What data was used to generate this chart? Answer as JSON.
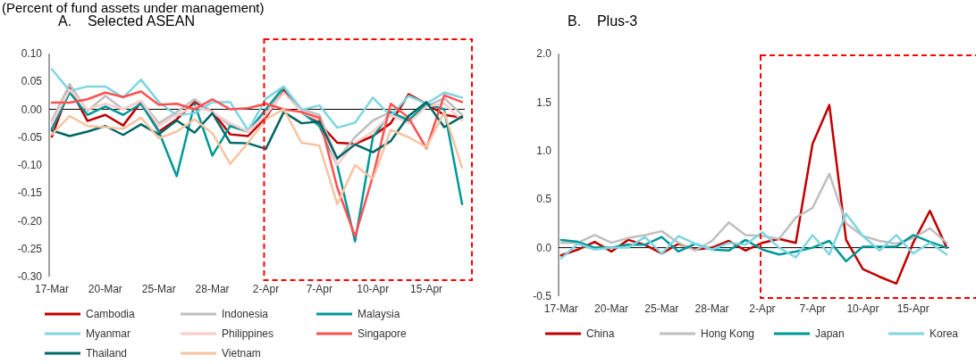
{
  "chart_data": [
    {
      "type": "line",
      "title": "A.    Selected ASEAN",
      "annotations": [
        "(Percent of fund assets under management)"
      ],
      "categories": [
        "17-Mar",
        null,
        null,
        "20-Mar",
        null,
        null,
        "25-Mar",
        null,
        null,
        "28-Mar",
        null,
        null,
        "2-Apr",
        null,
        null,
        "7-Apr",
        null,
        null,
        "10-Apr",
        null,
        null,
        "15-Apr",
        null,
        null
      ],
      "ylim": [
        -0.3,
        0.1
      ],
      "yticks": [
        {
          "value": -0.3,
          "label": "-0.30"
        },
        {
          "value": -0.25,
          "label": "-0.25"
        },
        {
          "value": -0.2,
          "label": "-0.20"
        },
        {
          "value": -0.15,
          "label": "-0.15"
        },
        {
          "value": -0.1,
          "label": "-0.10"
        },
        {
          "value": -0.05,
          "label": "-0.05"
        },
        {
          "value": 0,
          "label": "0.00"
        },
        {
          "value": 0.05,
          "label": "0.05"
        },
        {
          "value": 0.1,
          "label": "0.10"
        }
      ],
      "legend": "bottom",
      "ref_lines": [
        {
          "axis": "y",
          "value": 0,
          "color": "#000000"
        }
      ],
      "series": [
        {
          "name": "Cambodia",
          "color": "#c00000",
          "values": [
            -0.049,
            0.038,
            -0.021,
            -0.01,
            -0.029,
            0.013,
            -0.04,
            -0.018,
            0.013,
            -0.004,
            -0.045,
            -0.048,
            -0.015,
            0.035,
            -0.005,
            -0.025,
            -0.06,
            -0.062,
            -0.048,
            -0.025,
            0.027,
            0.01,
            -0.01,
            -0.015
          ]
        },
        {
          "name": "Indonesia",
          "color": "#bfbfbf",
          "values": [
            -0.02,
            0.045,
            -0.003,
            0.024,
            0.0,
            0.015,
            -0.025,
            -0.005,
            0.018,
            -0.005,
            -0.03,
            -0.04,
            -0.01,
            0.04,
            0.0,
            -0.01,
            -0.09,
            -0.05,
            -0.02,
            -0.005,
            -0.02,
            0.005,
            0.02,
            -0.01
          ]
        },
        {
          "name": "Malaysia",
          "color": "#009999",
          "values": [
            -0.035,
            0.03,
            -0.01,
            0.005,
            -0.01,
            0.01,
            -0.04,
            -0.12,
            0.01,
            -0.083,
            -0.03,
            -0.04,
            0.0,
            0.04,
            -0.005,
            -0.03,
            -0.1,
            -0.237,
            -0.05,
            -0.005,
            -0.02,
            0.01,
            0.0,
            -0.17
          ]
        },
        {
          "name": "Myanmar",
          "color": "#7fd6e0",
          "values": [
            0.072,
            0.033,
            0.041,
            0.041,
            0.021,
            0.053,
            0.013,
            -0.011,
            -0.007,
            0.013,
            0.013,
            -0.038,
            0.019,
            0.041,
            -0.001,
            0.007,
            -0.033,
            -0.024,
            0.021,
            -0.012,
            0.024,
            0.01,
            0.03,
            0.021
          ]
        },
        {
          "name": "Philippines",
          "color": "#ffcccc",
          "values": [
            -0.025,
            0.035,
            0.0,
            0.01,
            0.0,
            0.015,
            -0.03,
            -0.01,
            0.005,
            -0.005,
            -0.025,
            -0.04,
            -0.01,
            0.03,
            -0.005,
            -0.02,
            -0.1,
            -0.06,
            -0.04,
            -0.01,
            -0.025,
            0.005,
            0.01,
            -0.02
          ]
        },
        {
          "name": "Singapore",
          "color": "#ff5050",
          "values": [
            0.012,
            0.012,
            0.018,
            0.03,
            0.022,
            0.032,
            0.008,
            0.01,
            0.0,
            0.018,
            0.0,
            0.002,
            0.01,
            0.0,
            -0.005,
            -0.015,
            -0.14,
            -0.228,
            -0.12,
            0.01,
            -0.015,
            -0.07,
            0.025,
            0.013
          ]
        },
        {
          "name": "Thailand",
          "color": "#006666",
          "values": [
            -0.038,
            -0.048,
            -0.04,
            -0.03,
            -0.046,
            -0.027,
            -0.045,
            -0.02,
            -0.042,
            -0.007,
            -0.06,
            -0.061,
            -0.071,
            -0.005,
            -0.025,
            -0.022,
            -0.088,
            -0.063,
            -0.077,
            -0.057,
            -0.012,
            0.013,
            -0.032,
            -0.013
          ]
        },
        {
          "name": "Vietnam",
          "color": "#f8c3a0",
          "values": [
            -0.045,
            -0.012,
            -0.03,
            -0.032,
            -0.035,
            -0.015,
            -0.052,
            -0.04,
            -0.018,
            -0.043,
            -0.098,
            -0.06,
            -0.018,
            0.0,
            -0.06,
            -0.065,
            -0.17,
            -0.1,
            -0.125,
            -0.037,
            -0.05,
            -0.068,
            -0.005,
            -0.105
          ]
        }
      ]
    },
    {
      "type": "line",
      "title": "B.    Plus-3",
      "categories": [
        "17-Mar",
        null,
        null,
        "20-Mar",
        null,
        null,
        "25-Mar",
        null,
        null,
        "28-Mar",
        null,
        null,
        "2-Apr",
        null,
        null,
        "7-Apr",
        null,
        null,
        "10-Apr",
        null,
        null,
        "15-Apr",
        null,
        null
      ],
      "ylim": [
        -0.5,
        2.0
      ],
      "yticks": [
        -0.5,
        {
          "value": 0,
          "label": "0.0"
        },
        0.5,
        {
          "value": 1,
          "label": "1.0"
        },
        1.5,
        {
          "value": 2,
          "label": "2.0"
        }
      ],
      "legend": "bottom",
      "ref_lines": [
        {
          "axis": "y",
          "value": 0,
          "color": "#000000"
        }
      ],
      "series": [
        {
          "name": "China",
          "color": "#c00000",
          "values": [
            -0.08,
            -0.02,
            0.06,
            -0.04,
            0.08,
            0.03,
            -0.06,
            0.04,
            -0.02,
            0.0,
            0.07,
            -0.03,
            0.05,
            0.09,
            0.05,
            1.07,
            1.47,
            0.08,
            -0.22,
            -0.3,
            -0.37,
            0.05,
            0.38,
            0.0
          ]
        },
        {
          "name": "Hong Kong",
          "color": "#bfbfbf",
          "values": [
            0.05,
            0.05,
            0.13,
            0.05,
            0.1,
            0.13,
            0.17,
            0.05,
            -0.03,
            0.07,
            0.26,
            0.13,
            0.12,
            0.09,
            0.31,
            0.41,
            0.76,
            0.25,
            0.12,
            0.07,
            0.04,
            0.1,
            0.2,
            0.05
          ]
        },
        {
          "name": "Japan",
          "color": "#009999",
          "values": [
            0.08,
            0.06,
            0.0,
            0.0,
            0.03,
            0.03,
            0.11,
            -0.04,
            0.04,
            -0.02,
            -0.03,
            0.08,
            -0.02,
            -0.07,
            -0.04,
            0.0,
            0.07,
            -0.14,
            0.01,
            0.01,
            0.01,
            0.13,
            0.06,
            0.0
          ]
        },
        {
          "name": "Korea",
          "color": "#7fd6e0",
          "values": [
            -0.11,
            0.04,
            -0.02,
            0.0,
            0.0,
            0.11,
            -0.06,
            0.12,
            0.04,
            -0.02,
            0.05,
            0.03,
            0.16,
            0.0,
            -0.1,
            0.13,
            -0.07,
            0.35,
            0.12,
            -0.03,
            0.13,
            -0.06,
            0.05,
            -0.07
          ]
        }
      ]
    }
  ]
}
